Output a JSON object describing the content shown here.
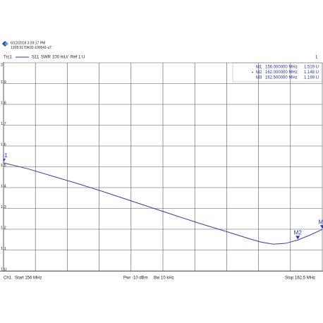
{
  "header": {
    "date": "6/12/2018 3:39:17 PM",
    "serial": "1328.5170K92-100541-uT"
  },
  "trace": {
    "name": "Trc1",
    "parameter": "S11",
    "format": "SWR",
    "scale": "100 mU/",
    "ref": "Ref 1 U",
    "channel_number": "1"
  },
  "footer": {
    "channel": "Ch1",
    "start": "Start 156 MHz",
    "power": "Pwr -10 dBm",
    "bandwidth": "Bw 10 kHz",
    "stop": "Stop 162.5 MHz"
  },
  "chart_data": {
    "type": "line",
    "x": [
      156,
      156.5,
      157,
      157.5,
      158,
      158.5,
      159,
      159.5,
      160,
      160.5,
      161,
      161.25,
      161.5,
      161.75,
      162,
      162.25,
      162.5
    ],
    "series": [
      {
        "name": "S11",
        "color": "#3a3aa8",
        "values": [
          1.519,
          1.49,
          1.455,
          1.42,
          1.383,
          1.344,
          1.305,
          1.266,
          1.228,
          1.192,
          1.155,
          1.138,
          1.128,
          1.132,
          1.148,
          1.172,
          1.199
        ]
      }
    ],
    "xlim": [
      156,
      162.5
    ],
    "ylim": [
      1,
      2
    ],
    "yticks": [
      {
        "value": 1,
        "label": "1 U"
      },
      1.1,
      1.2,
      1.3,
      1.4,
      1.5,
      1.6,
      1.7,
      1.8,
      1.9,
      2
    ],
    "grid": true,
    "markers": {
      "names": [
        "M1",
        "M2",
        "M3"
      ],
      "x": [
        156,
        162,
        162.5
      ],
      "x_labels": [
        "156.000000 MHz",
        "162.000000 MHz",
        "162.500000 MHz"
      ],
      "values": [
        1.519,
        1.148,
        1.199
      ],
      "value_labels": [
        "1.519 U",
        "1.148 U",
        "1.199 U"
      ],
      "color": "#2233cc"
    }
  }
}
